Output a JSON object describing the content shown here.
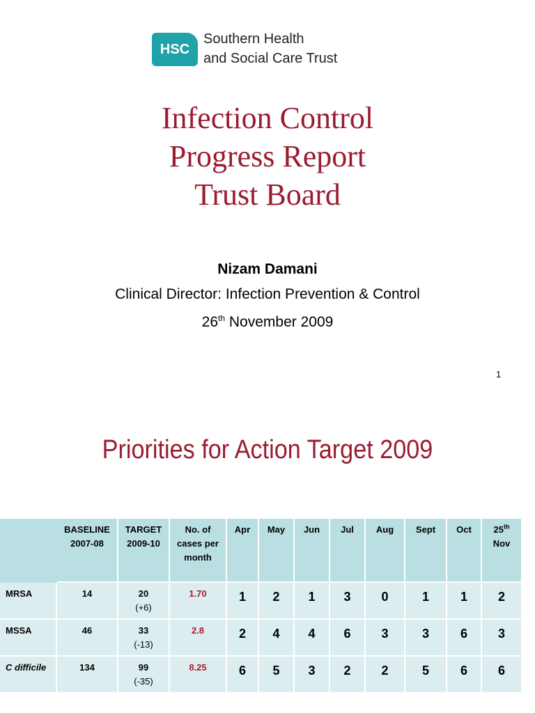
{
  "logo": {
    "mark": "HSC",
    "line1": "Southern Health",
    "line2": "and Social Care Trust"
  },
  "slide1": {
    "title_lines": [
      "Infection Control",
      "Progress Report",
      "Trust Board"
    ],
    "author": "Nizam Damani",
    "role": "Clinical Director: Infection Prevention & Control",
    "date": {
      "day": "26",
      "suffix": "th",
      "rest": " November 2009"
    },
    "page_number": "1"
  },
  "slide2": {
    "title": "Priorities for Action Target 2009",
    "table": {
      "columns": [
        [
          "BASELINE",
          "2007-08"
        ],
        [
          "TARGET",
          "2009-10"
        ],
        [
          "No. of",
          "cases per",
          "month"
        ],
        [
          "Apr"
        ],
        [
          "May"
        ],
        [
          "Jun"
        ],
        [
          "Jul"
        ],
        [
          "Aug"
        ],
        [
          "Sept"
        ],
        [
          "Oct"
        ]
      ],
      "last_column": {
        "day": "25",
        "suffix": "th",
        "month": "Nov"
      },
      "rows": [
        {
          "name": "MRSA",
          "baseline": 14,
          "target": 20,
          "change": "(+6)",
          "rate": "1.70",
          "months": [
            1,
            2,
            1,
            3,
            0,
            1,
            1,
            2
          ]
        },
        {
          "name": "MSSA",
          "baseline": 46,
          "target": 33,
          "change": "(-13)",
          "rate": "2.8",
          "months": [
            2,
            4,
            4,
            6,
            3,
            3,
            6,
            3
          ]
        },
        {
          "name": "C difficile",
          "baseline": 134,
          "target": 99,
          "change": "(-35)",
          "rate": "8.25",
          "months": [
            6,
            5,
            3,
            2,
            2,
            5,
            6,
            6
          ]
        }
      ]
    }
  }
}
